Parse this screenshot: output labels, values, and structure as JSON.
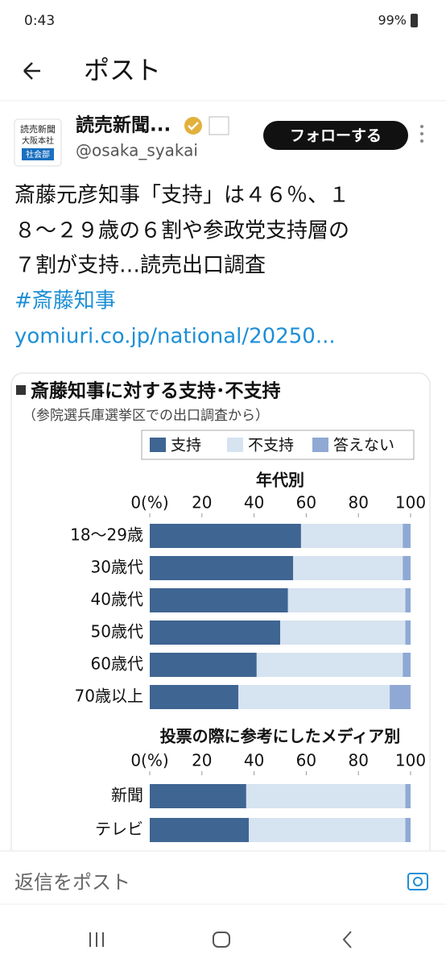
{
  "status_bar": {
    "time": "0:43",
    "battery": "99%"
  },
  "header": {
    "title": "ポスト"
  },
  "post": {
    "avatar_lines": [
      "読売新聞",
      "大阪本社",
      "社会部"
    ],
    "author": "読売新聞...",
    "handle": "@osaka_syakai",
    "follow": "フォローする",
    "text_lines": [
      "斎藤元彦知事「支持」は４６％、１",
      "８～２９歳の６割や参政党支持層の",
      "７割が支持…読売出口調査"
    ],
    "hashtag": "#斎藤知事",
    "link": "yomiuri.co.jp/national/20250..."
  },
  "chart": {
    "type": "stacked-bar",
    "title": "斎藤知事に対する支持･不支持",
    "subtitle": "（参院選兵庫選挙区での出口調査から）",
    "xlim": [
      0,
      100
    ],
    "xticks": [
      {
        "value": 0,
        "label": "0(%)"
      },
      20,
      40,
      60,
      80,
      100
    ],
    "legend_names": [
      "支持",
      "不支持",
      "答えない"
    ],
    "colors": [
      "#3f6592",
      "#d6e3f0",
      "#8fa9d4"
    ],
    "panels": [
      {
        "title": "年代別",
        "categories": [
          "18～29歳",
          "30歳代",
          "40歳代",
          "50歳代",
          "60歳代",
          "70歳以上"
        ],
        "series": [
          {
            "name": "支持",
            "values": [
              58,
              55,
              53,
              50,
              41,
              34
            ]
          },
          {
            "name": "不支持",
            "values": [
              39,
              42,
              45,
              48,
              56,
              58
            ]
          },
          {
            "name": "答えない",
            "values": [
              3,
              3,
              2,
              2,
              3,
              8
            ]
          }
        ]
      },
      {
        "title": "投票の際に参考にしたメディア別",
        "categories": [
          "新聞",
          "テレビ"
        ],
        "series": [
          {
            "name": "支持",
            "values": [
              37,
              38
            ]
          },
          {
            "name": "不支持",
            "values": [
              61,
              60
            ]
          },
          {
            "name": "答えない",
            "values": [
              2,
              2
            ]
          }
        ]
      }
    ]
  },
  "reply": {
    "placeholder": "返信をポスト"
  }
}
